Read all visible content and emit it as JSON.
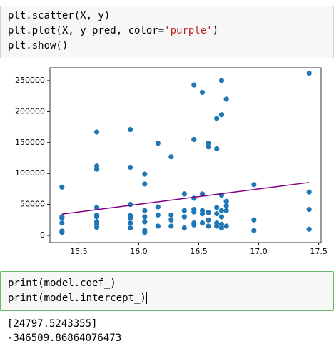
{
  "cell1": {
    "code": [
      [
        "plt.scatter(X, y)"
      ],
      [
        "plt.plot(X, y_pred, color=",
        "'purple'",
        ")"
      ],
      [
        "plt.show()"
      ]
    ]
  },
  "chart_data": {
    "type": "scatter",
    "xlim": [
      15.26,
      17.52
    ],
    "ylim": [
      -11500,
      270700
    ],
    "xticks": [
      15.5,
      {
        "value": 16,
        "label": "16.0"
      },
      16.5,
      {
        "value": 17,
        "label": "17.0"
      },
      17.5
    ],
    "yticks": [
      0,
      50000,
      100000,
      150000,
      200000,
      250000
    ],
    "series": [
      {
        "type": "scatter",
        "color": "#1f77b4",
        "x": [
          15.36,
          15.36,
          15.36,
          15.36,
          15.36,
          15.36,
          15.65,
          15.65,
          15.65,
          15.65,
          15.65,
          15.65,
          15.65,
          15.65,
          15.65,
          15.65,
          15.93,
          15.93,
          15.93,
          15.93,
          15.93,
          15.93,
          15.93,
          15.93,
          16.05,
          16.05,
          16.05,
          16.05,
          16.05,
          16.05,
          16.05,
          16.16,
          16.16,
          16.16,
          16.16,
          16.27,
          16.27,
          16.27,
          16.27,
          16.38,
          16.38,
          16.38,
          16.38,
          16.46,
          16.46,
          16.46,
          16.46,
          16.46,
          16.46,
          16.46,
          16.53,
          16.53,
          16.53,
          16.53,
          16.53,
          16.58,
          16.58,
          16.58,
          16.58,
          16.58,
          16.65,
          16.65,
          16.65,
          16.65,
          16.65,
          16.65,
          16.69,
          16.69,
          16.69,
          16.69,
          16.69,
          16.69,
          16.69,
          16.73,
          16.73,
          16.73,
          16.73,
          16.73,
          16.96,
          16.96,
          16.96,
          17.42,
          17.42,
          17.42,
          17.42
        ],
        "y": [
          78000,
          30000,
          28000,
          20000,
          7000,
          5000,
          107000,
          112000,
          167000,
          45000,
          32000,
          30000,
          22000,
          18000,
          13000,
          33000,
          171000,
          110000,
          50000,
          32000,
          30000,
          20000,
          12000,
          28000,
          99000,
          83000,
          40000,
          30000,
          22000,
          8000,
          5000,
          149000,
          46000,
          33000,
          15000,
          127000,
          33000,
          25000,
          15000,
          67000,
          40000,
          30000,
          12000,
          243000,
          155000,
          60000,
          42000,
          38000,
          20000,
          17000,
          231000,
          67000,
          40000,
          35000,
          20000,
          143000,
          149000,
          37000,
          25000,
          15000,
          140000,
          189000,
          45000,
          35000,
          20000,
          15000,
          250000,
          195000,
          65000,
          40000,
          30000,
          18000,
          12000,
          220000,
          55000,
          48000,
          40000,
          15000,
          82000,
          25000,
          8000,
          262000,
          70000,
          42000,
          10000
        ]
      },
      {
        "type": "line",
        "color": "purple",
        "x": [
          15.36,
          17.42
        ],
        "y": [
          34381,
          85464
        ]
      }
    ]
  },
  "cell2": {
    "code": [
      [
        "print(model.coef_)"
      ],
      [
        "print(model.intercept_)"
      ]
    ]
  },
  "output": [
    "[24797.5243355]",
    "-346509.86864076473"
  ]
}
